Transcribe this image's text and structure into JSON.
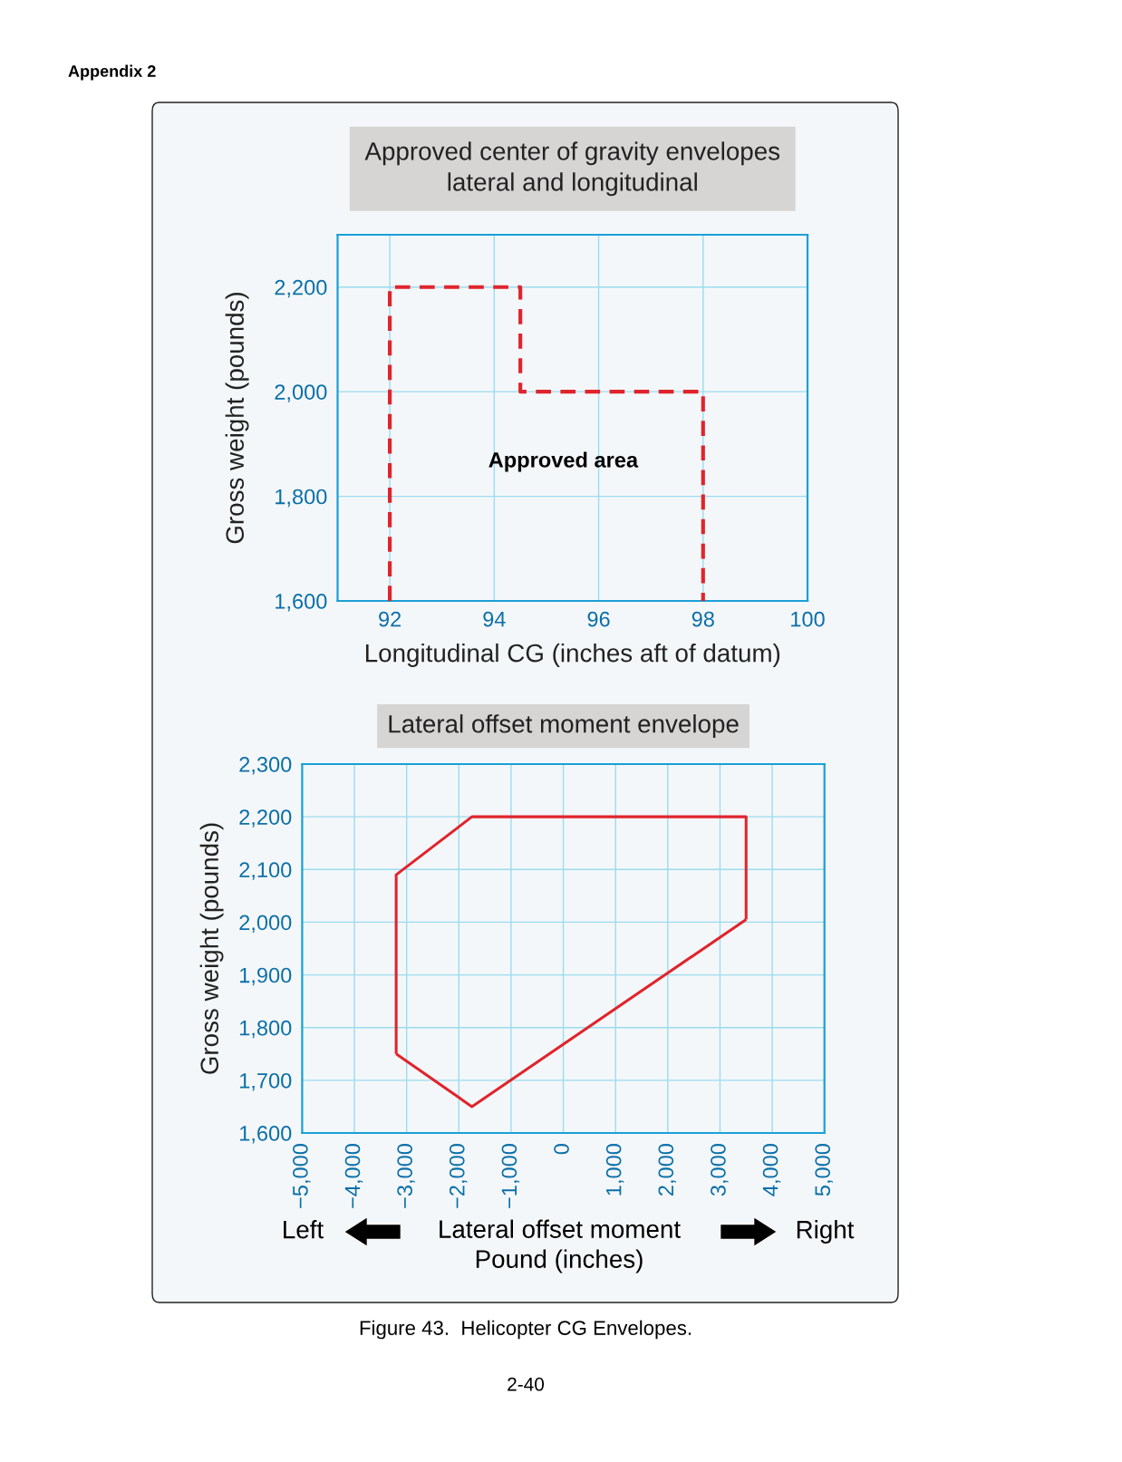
{
  "chart_data": [
    {
      "type": "line",
      "title": "Approved center of gravity envelopes\nlateral and longitudinal",
      "xlabel": "Longitudinal CG (inches aft of datum)",
      "ylabel": "Gross weight (pounds)",
      "series": [
        {
          "color": "#e0242c",
          "x": [
            92,
            92,
            94.5,
            94.5,
            98,
            98
          ],
          "values": [
            1600,
            2200,
            2200,
            2000,
            2000,
            1600
          ]
        }
      ],
      "xlim": [
        91,
        100
      ],
      "xticks": [
        92,
        94,
        96,
        98,
        100
      ],
      "ylim": [
        1600,
        2300
      ],
      "yticks": [
        {
          "value": 1600,
          "label": "1,600"
        },
        {
          "value": 1800,
          "label": "1,800"
        },
        {
          "value": 2000,
          "label": "2,000"
        },
        {
          "value": 2200,
          "label": "2,200"
        }
      ],
      "grid": true,
      "line_style": "dashed",
      "marker": "none",
      "annotations": [
        "Appendix 2",
        "Approved area"
      ]
    },
    {
      "type": "line",
      "title": "Lateral offset moment envelope",
      "xlabel": "Lateral offset moment\nPound (inches)",
      "ylabel": "Gross weight (pounds)",
      "series": [
        {
          "color": "#e0242c",
          "x": [
            -3200,
            -3200,
            -1750,
            3500,
            3500
          ],
          "values": [
            1750,
            2090,
            2200,
            2200,
            2005
          ]
        },
        {
          "color": "#e0242c",
          "x": [
            -3200,
            -1750,
            3500
          ],
          "values": [
            1750,
            1650,
            2005
          ]
        }
      ],
      "xlim": [
        -5000,
        5000
      ],
      "xticks": [
        {
          "value": -5000,
          "label": "−5,000"
        },
        {
          "value": -4000,
          "label": "−4,000"
        },
        {
          "value": -3000,
          "label": "−3,000"
        },
        {
          "value": -2000,
          "label": "−2,000"
        },
        {
          "value": -1000,
          "label": "−1,000"
        },
        0,
        {
          "value": 1000,
          "label": "1,000"
        },
        {
          "value": 2000,
          "label": "2,000"
        },
        {
          "value": 3000,
          "label": "3,000"
        },
        {
          "value": 4000,
          "label": "4,000"
        },
        {
          "value": 5000,
          "label": "5,000"
        }
      ],
      "ylim": [
        1600,
        2300
      ],
      "yticks": [
        {
          "value": 1600,
          "label": "1,600"
        },
        {
          "value": 1700,
          "label": "1,700"
        },
        {
          "value": 1800,
          "label": "1,800"
        },
        {
          "value": 1900,
          "label": "1,900"
        },
        {
          "value": 2000,
          "label": "2,000"
        },
        {
          "value": 2100,
          "label": "2,100"
        },
        {
          "value": 2200,
          "label": "2,200"
        },
        {
          "value": 2300,
          "label": "2,300"
        }
      ],
      "grid": true,
      "line_style": "solid",
      "marker": "none",
      "annotations": [
        "Left",
        "Right",
        "Figure 43.  Helicopter CG Envelopes.",
        "2-40"
      ]
    }
  ]
}
